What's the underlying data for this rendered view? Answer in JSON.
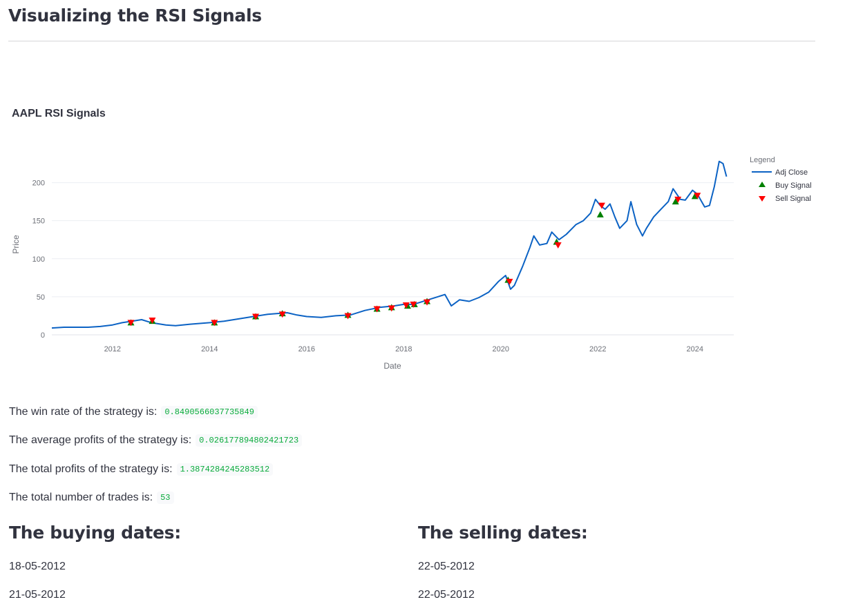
{
  "page": {
    "title": "Visualizing the RSI Signals"
  },
  "chart_data": {
    "type": "line",
    "title": "AAPL RSI Signals",
    "xlabel": "Date",
    "ylabel": "Price",
    "xlim": [
      2010.75,
      2024.8
    ],
    "ylim": [
      0,
      235
    ],
    "x_ticks": [
      2012,
      2014,
      2016,
      2018,
      2020,
      2022,
      2024
    ],
    "y_ticks": [
      0,
      50,
      100,
      150,
      200
    ],
    "grid": true,
    "legend": {
      "title": "Legend",
      "placement": "right",
      "entries": [
        "Adj Close",
        "Buy Signal",
        "Sell Signal"
      ]
    },
    "series": [
      {
        "name": "Adj Close",
        "color": "#0b62c4",
        "x": [
          2010.75,
          2011.0,
          2011.25,
          2011.5,
          2011.75,
          2012.0,
          2012.2,
          2012.4,
          2012.6,
          2012.75,
          2012.9,
          2013.1,
          2013.3,
          2013.6,
          2013.8,
          2014.0,
          2014.3,
          2014.6,
          2014.9,
          2015.2,
          2015.4,
          2015.6,
          2015.8,
          2016.0,
          2016.3,
          2016.6,
          2016.9,
          2017.2,
          2017.5,
          2017.8,
          2018.0,
          2018.2,
          2018.45,
          2018.7,
          2018.85,
          2018.98,
          2019.15,
          2019.35,
          2019.55,
          2019.75,
          2019.95,
          2020.1,
          2020.2,
          2020.28,
          2020.45,
          2020.6,
          2020.68,
          2020.8,
          2020.95,
          2021.05,
          2021.2,
          2021.35,
          2021.55,
          2021.7,
          2021.85,
          2021.95,
          2022.05,
          2022.15,
          2022.25,
          2022.35,
          2022.45,
          2022.6,
          2022.68,
          2022.8,
          2022.92,
          2023.0,
          2023.15,
          2023.3,
          2023.45,
          2023.55,
          2023.7,
          2023.8,
          2023.95,
          2024.05,
          2024.2,
          2024.3,
          2024.4,
          2024.5,
          2024.58,
          2024.65
        ],
        "y": [
          9,
          10,
          10,
          10,
          11,
          13,
          16,
          18,
          20,
          17,
          15,
          13,
          12,
          14,
          15,
          16,
          18,
          21,
          24,
          27,
          28,
          29,
          26,
          24,
          23,
          25,
          26,
          32,
          36,
          38,
          40,
          40,
          45,
          50,
          53,
          38,
          46,
          44,
          49,
          56,
          70,
          78,
          60,
          65,
          90,
          115,
          130,
          118,
          120,
          135,
          125,
          132,
          145,
          150,
          160,
          178,
          170,
          165,
          172,
          155,
          140,
          150,
          175,
          145,
          130,
          140,
          155,
          165,
          175,
          192,
          178,
          177,
          190,
          185,
          168,
          170,
          195,
          228,
          225,
          208
        ]
      },
      {
        "name": "Buy Signal",
        "color": "#008000",
        "marker": "triangle-up",
        "x": [
          2012.38,
          2012.82,
          2014.1,
          2014.95,
          2015.5,
          2016.85,
          2017.45,
          2017.75,
          2018.08,
          2018.22,
          2018.48,
          2020.15,
          2021.15,
          2022.05,
          2023.6,
          2024.0
        ],
        "y": [
          16,
          18,
          16,
          24,
          28,
          26,
          34,
          36,
          38,
          40,
          44,
          72,
          122,
          158,
          175,
          182
        ]
      },
      {
        "name": "Sell Signal",
        "color": "#ff0000",
        "marker": "triangle-down",
        "x": [
          2012.38,
          2012.82,
          2014.1,
          2014.95,
          2015.5,
          2016.85,
          2017.45,
          2017.75,
          2018.05,
          2018.2,
          2018.48,
          2020.18,
          2021.18,
          2022.08,
          2023.65,
          2024.05
        ],
        "y": [
          16,
          19,
          16,
          24,
          27,
          25,
          34,
          35,
          39,
          40,
          43,
          70,
          118,
          170,
          178,
          183
        ]
      }
    ]
  },
  "stats": {
    "win_rate_label": "The win rate of the strategy is:",
    "win_rate_value": "0.8490566037735849",
    "avg_profit_label": "The average profits of the strategy is:",
    "avg_profit_value": "0.026177894802421723",
    "total_profit_label": "The total profits of the strategy is:",
    "total_profit_value": "1.3874284245283512",
    "num_trades_label": "The total number of trades is:",
    "num_trades_value": "53"
  },
  "buying": {
    "heading": "The buying dates:",
    "dates": [
      "18-05-2012",
      "21-05-2012"
    ]
  },
  "selling": {
    "heading": "The selling dates:",
    "dates": [
      "22-05-2012",
      "22-05-2012"
    ]
  }
}
